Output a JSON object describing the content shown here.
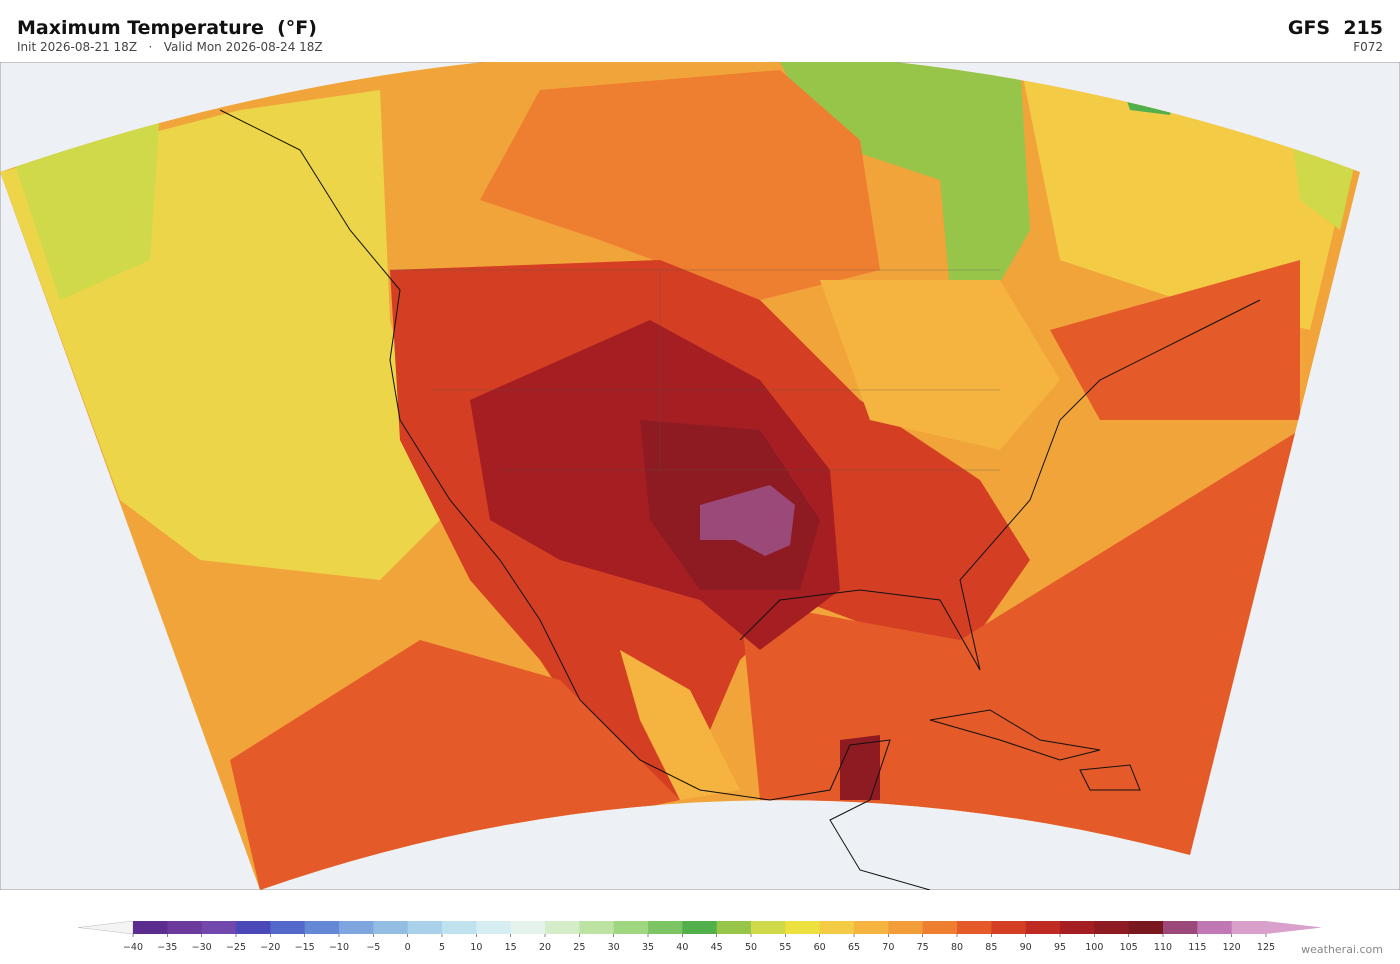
{
  "header": {
    "title": "Maximum Temperature  (°F)",
    "subtitle": "Init 2026-08-21 18Z   ·   Valid Mon 2026-08-24 18Z",
    "model": "GFS  215",
    "forecast_hour": "F072"
  },
  "colorbar": {
    "ticks": [
      {
        "value": -40,
        "label": "−40"
      },
      {
        "value": -35,
        "label": "−35"
      },
      {
        "value": -30,
        "label": "−30"
      },
      {
        "value": -25,
        "label": "−25"
      },
      {
        "value": -20,
        "label": "−20"
      },
      {
        "value": -15,
        "label": "−15"
      },
      {
        "value": -10,
        "label": "−10"
      },
      {
        "value": -5,
        "label": "−5"
      },
      0,
      5,
      10,
      15,
      20,
      25,
      30,
      35,
      40,
      45,
      50,
      55,
      60,
      65,
      70,
      75,
      80,
      85,
      90,
      95,
      100,
      105,
      110,
      115,
      120,
      125
    ],
    "colors": [
      "#5a2d8e",
      "#6b3a9c",
      "#7248ad",
      "#4b49b8",
      "#5468cc",
      "#6488d6",
      "#7ea5dd",
      "#94bde3",
      "#a9d2ea",
      "#c0e2ef",
      "#d6edf2",
      "#e4f3ec",
      "#d4ecc8",
      "#bde3a2",
      "#9fd67f",
      "#7cc464",
      "#52b04c",
      "#97c54a",
      "#cfd949",
      "#ede140",
      "#f4cb45",
      "#f5b340",
      "#f29c3a",
      "#ee7f30",
      "#e45a28",
      "#d43f24",
      "#bf2a22",
      "#a51f22",
      "#8f1b22",
      "#7a1820",
      "#9b4979",
      "#bf78b3",
      "#d9a0cc"
    ],
    "under_color": "#f4f4f4",
    "over_color": "#d9a0cc"
  },
  "credit": "weatherai.com"
}
